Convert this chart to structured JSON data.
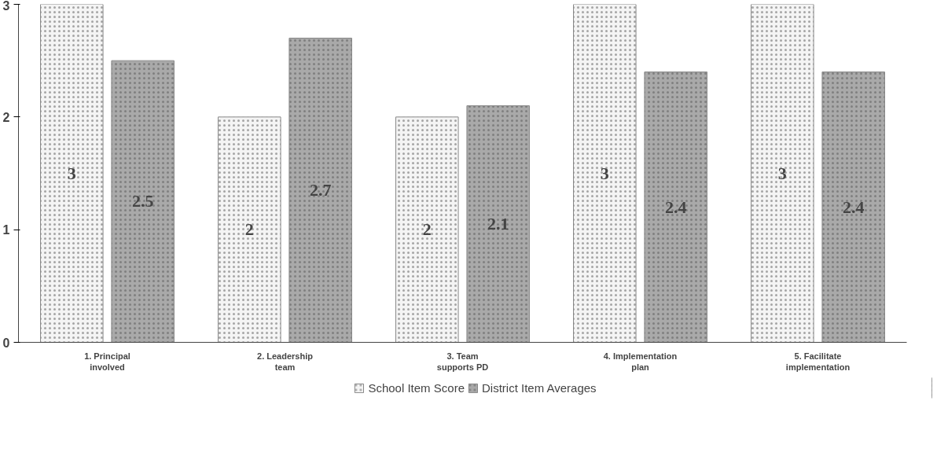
{
  "chart_data": {
    "type": "bar",
    "categories": [
      "1. Principal involved",
      "2. Leadership team",
      "3. Team supports PD",
      "4. Implementation plan",
      "5. Facilitate implementation"
    ],
    "series": [
      {
        "name": "School Item Score",
        "color": "#f4f4f4",
        "values": [
          3,
          2,
          2,
          3,
          3
        ]
      },
      {
        "name": "District Item Averages",
        "color": "#a9a9a9",
        "values": [
          2.5,
          2.7,
          2.1,
          2.4,
          2.4
        ]
      }
    ],
    "ylim": [
      0,
      3
    ],
    "yticks": [
      0,
      1,
      2,
      3
    ],
    "grid": false,
    "legend": "bottom",
    "data_labels": true
  }
}
